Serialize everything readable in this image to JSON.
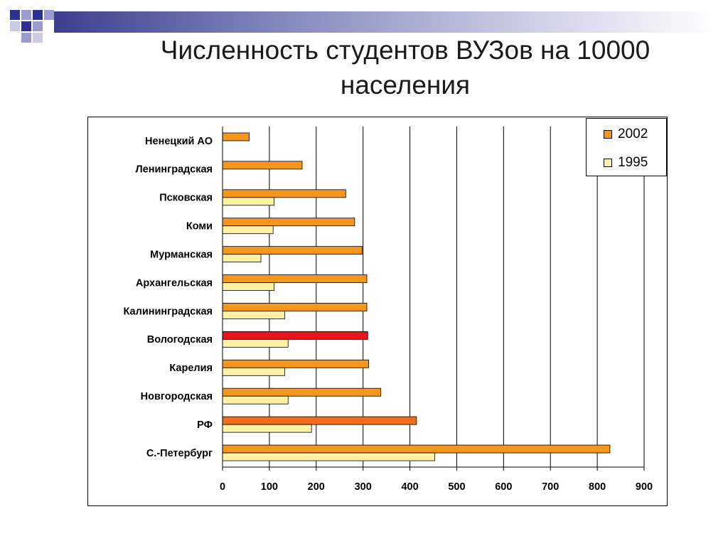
{
  "slide": {
    "title": "Численность студентов ВУЗов на 10000 населения"
  },
  "colors": {
    "deco_dark": "#2e3192",
    "deco_light": "#9a9cd0",
    "bar_2002": "#f5961e",
    "bar_1995": "#fff2a6",
    "bar_highlight_vologda": "#e8141b",
    "bar_highlight_rf": "#f26d1a"
  },
  "chart_data": {
    "type": "bar",
    "orientation": "horizontal",
    "title": "",
    "xlabel": "",
    "ylabel": "",
    "xlim": [
      0,
      900
    ],
    "xticks": [
      0,
      100,
      200,
      300,
      400,
      500,
      600,
      700,
      800,
      900
    ],
    "grid": "vertical",
    "legend_position": "top-right",
    "categories": [
      "Ненецкий АО",
      "Ленинградская",
      "Псковская",
      "Коми",
      "Мурманская",
      "Архангельская",
      "Калининградская",
      "Вологодская",
      "Карелия",
      "Новгородская",
      "РФ",
      "С.-Петербург"
    ],
    "series": [
      {
        "name": "2002",
        "color": "#f5961e",
        "values": [
          57,
          170,
          263,
          282,
          298,
          308,
          308,
          310,
          312,
          338,
          414,
          827
        ]
      },
      {
        "name": "1995",
        "color": "#fff2a6",
        "values": [
          null,
          null,
          110,
          108,
          82,
          110,
          133,
          140,
          133,
          140,
          190,
          453
        ]
      }
    ],
    "highlighted_bars": [
      {
        "category": "Вологодская",
        "series": "2002",
        "color": "#e8141b"
      },
      {
        "category": "РФ",
        "series": "2002",
        "color": "#f26d1a"
      }
    ]
  }
}
